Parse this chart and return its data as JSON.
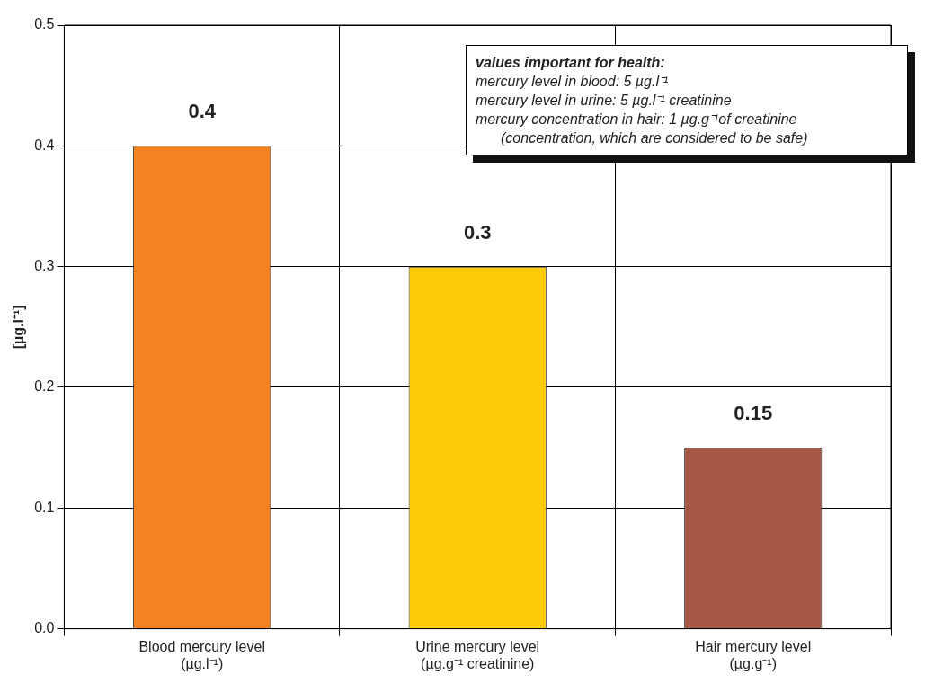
{
  "chart_data": {
    "type": "bar",
    "ylabel": "[µg.l⁻¹]",
    "categories": [
      "Blood mercury level\n(µg.l⁻¹)",
      "Urine mercury level\n(µg.g⁻¹ creatinine)",
      "Hair mercury level\n(µg.g⁻¹)"
    ],
    "values": [
      0.4,
      0.3,
      0.15
    ],
    "colors": [
      "#f58220",
      "#fecb0a",
      "#a65745"
    ],
    "ylim": [
      0,
      0.5
    ],
    "yticks": [
      {
        "value": 0,
        "label": "0.0"
      },
      0.1,
      0.2,
      0.3,
      0.4,
      0.5
    ],
    "grid": true,
    "data_labels": true,
    "annotations": [
      "values important for health:",
      "mercury level in blood: 5 µg.l⁻¹",
      "mercury level in urine: 5 µg.l⁻¹ creatinine",
      "mercury concentration in hair: 1 µg.g⁻¹of creatinine",
      "(concentration, which are considered to be safe)"
    ]
  }
}
